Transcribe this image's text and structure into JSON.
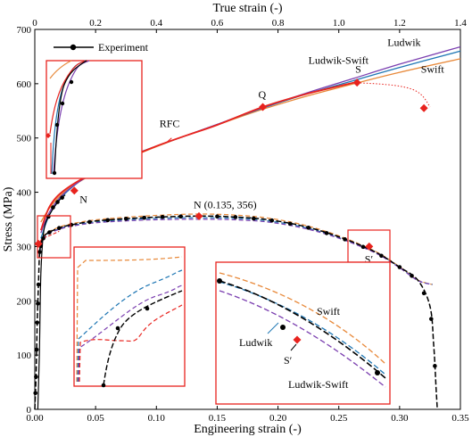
{
  "chart_data": {
    "type": "line",
    "title": "",
    "xlabel": "Engineering strain (-)",
    "x2label": "True strain (-)",
    "ylabel": "Stress (MPa)",
    "xlim": [
      0,
      0.35
    ],
    "x2lim": [
      0,
      1.4
    ],
    "ylim": [
      0,
      700
    ],
    "xticks": [
      "0.00",
      "0.05",
      "0.10",
      "0.15",
      "0.20",
      "0.25",
      "0.30",
      "0.35"
    ],
    "x2ticks": [
      "0",
      "0.2",
      "0.4",
      "0.6",
      "0.8",
      "1.0",
      "1.2",
      "1.4"
    ],
    "yticks": [
      "0",
      "100",
      "200",
      "300",
      "400",
      "500",
      "600",
      "700"
    ],
    "legend": {
      "placement": "top-left",
      "label": "Experiment"
    },
    "colors": {
      "experiment": "#000000",
      "rfc": "#e8231e",
      "ludwik": "#1f77b4",
      "swift": "#e8893a",
      "ludwik_swift": "#7b3fb0"
    },
    "series": [
      {
        "name": "Experiment",
        "axis": "engineering",
        "x": [
          0.0,
          0.001,
          0.002,
          0.003,
          0.004,
          0.006,
          0.01,
          0.02,
          0.03,
          0.05,
          0.08,
          0.11,
          0.135,
          0.16,
          0.19,
          0.22,
          0.25,
          0.28,
          0.3,
          0.315,
          0.325,
          0.328,
          0.33,
          0.331
        ],
        "y": [
          0,
          60,
          160,
          230,
          290,
          312,
          324,
          334,
          340,
          347,
          352,
          355,
          356,
          355,
          350,
          338,
          318,
          290,
          262,
          238,
          190,
          120,
          40,
          0
        ]
      },
      {
        "name": "RFC",
        "axis": "true",
        "x": [
          0.02,
          0.05,
          0.1,
          0.2,
          0.3,
          0.4,
          0.5,
          0.6,
          0.75,
          0.9,
          1.05
        ],
        "y": [
          330,
          375,
          405,
          438,
          462,
          485,
          505,
          524,
          557,
          582,
          602
        ]
      },
      {
        "name": "Ludwik",
        "axis": "true",
        "x": [
          0.02,
          0.05,
          0.1,
          0.2,
          0.3,
          0.4,
          0.5,
          0.6,
          0.75,
          0.9,
          1.05,
          1.2,
          1.4
        ],
        "y": [
          315,
          360,
          398,
          440,
          464,
          485,
          505,
          525,
          555,
          582,
          606,
          630,
          660
        ]
      },
      {
        "name": "Swift",
        "axis": "true",
        "x": [
          0.02,
          0.05,
          0.1,
          0.2,
          0.3,
          0.4,
          0.5,
          0.6,
          0.75,
          0.9,
          1.05,
          1.2,
          1.4
        ],
        "y": [
          345,
          372,
          402,
          436,
          461,
          484,
          505,
          524,
          553,
          578,
          600,
          621,
          646
        ]
      },
      {
        "name": "Ludwik-Swift",
        "axis": "true",
        "x": [
          0.02,
          0.05,
          0.1,
          0.2,
          0.3,
          0.4,
          0.5,
          0.6,
          0.75,
          0.9,
          1.05,
          1.2,
          1.4
        ],
        "y": [
          325,
          365,
          400,
          438,
          463,
          485,
          505,
          525,
          556,
          584,
          610,
          636,
          668
        ]
      }
    ],
    "annotations": {
      "N_true": "N",
      "Q": "Q",
      "S": "S",
      "N_eng": "N (0.135, 356)",
      "S_prime": "S′",
      "rfc": "RFC",
      "ludwik": "Ludwik",
      "ludwik_swift": "Ludwik-Swift",
      "swift": "Swift"
    },
    "inset_right": {
      "swift": "Swift",
      "ludwik": "Ludwik",
      "s_prime": "S′",
      "ludwik_swift": "Ludwik-Swift"
    }
  }
}
